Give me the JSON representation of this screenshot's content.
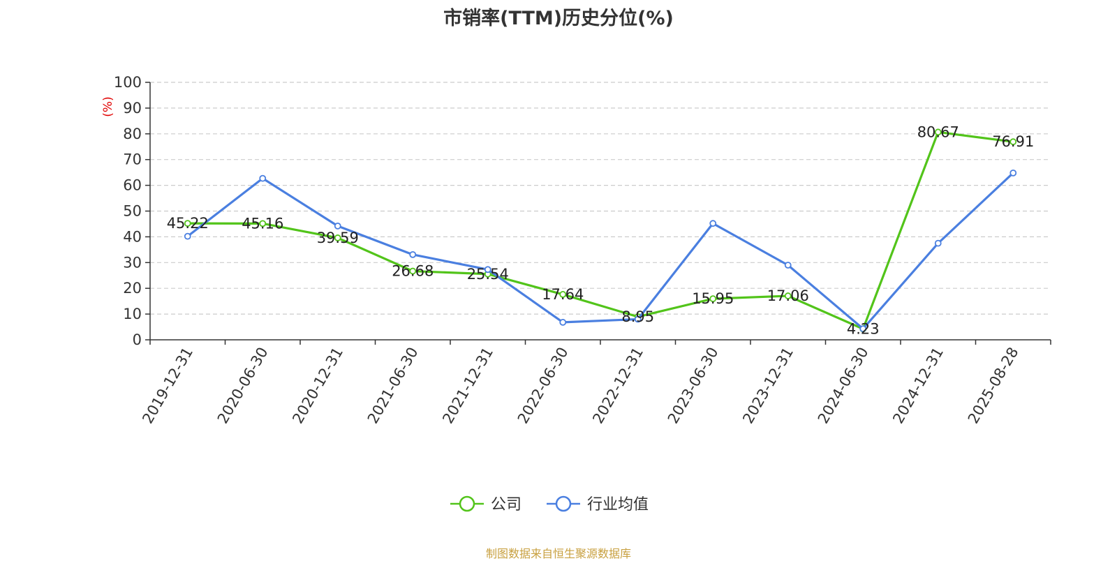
{
  "chart_data": {
    "type": "line",
    "title": "市销率(TTM)历史分位(%)",
    "ylabel": "(%)",
    "ylim": [
      0,
      100
    ],
    "yticks": [
      0,
      10,
      20,
      30,
      40,
      50,
      60,
      70,
      80,
      90,
      100
    ],
    "grid": true,
    "legend_position": "bottom",
    "categories": [
      "2019-12-31",
      "2020-06-30",
      "2020-12-31",
      "2021-06-30",
      "2021-12-31",
      "2022-06-30",
      "2022-12-31",
      "2023-06-30",
      "2023-12-31",
      "2024-06-30",
      "2024-12-31",
      "2025-08-28"
    ],
    "series": [
      {
        "name": "公司",
        "color": "#52c41a",
        "values": [
          45.22,
          45.16,
          39.59,
          26.68,
          25.54,
          17.64,
          8.95,
          15.95,
          17.06,
          4.23,
          80.67,
          76.91
        ],
        "data_labels": [
          "45.22",
          "45.16",
          "39.59",
          "26.68",
          "25.54",
          "17.64",
          "8.95",
          "15.95",
          "17.06",
          "4.23",
          "80.67",
          "76.91"
        ]
      },
      {
        "name": "行业均值",
        "color": "#4a7fe0",
        "values": [
          40.2,
          62.7,
          44.2,
          33.1,
          27.3,
          6.8,
          8.0,
          45.2,
          29.0,
          4.3,
          37.5,
          64.8
        ]
      }
    ]
  },
  "source_note": "制图数据来自恒生聚源数据库"
}
